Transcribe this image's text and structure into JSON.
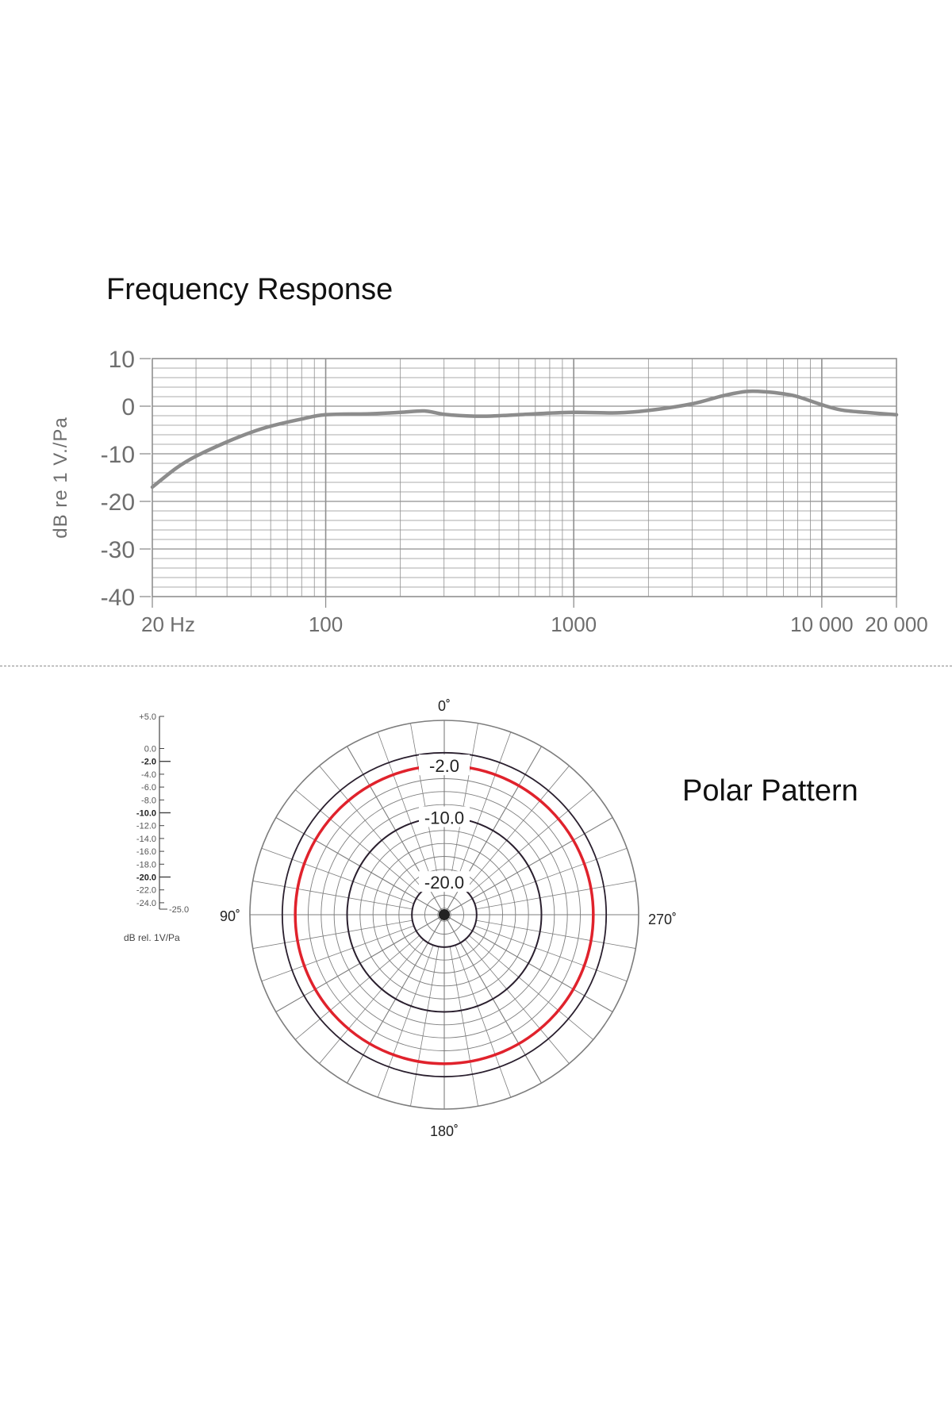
{
  "colors": {
    "grid": "#8f8f8f",
    "response_curve": "#8c8c8c",
    "polar_ring_dark": "#2a1f2e",
    "polar_highlight": "#e0222c",
    "axis_text": "#6e6e6e"
  },
  "chart_data": [
    {
      "type": "line",
      "title": "Frequency Response",
      "ylabel": "dB re 1 V./Pa",
      "xscale": "log",
      "xlim": [
        20,
        20000
      ],
      "ylim": [
        -40,
        10
      ],
      "grid": true,
      "yticks": [
        10,
        0,
        -10,
        -20,
        -30,
        -40
      ],
      "ytick_labels": [
        "10",
        "0",
        "-10",
        "-20",
        "-30",
        "-40"
      ],
      "xticks": [
        20,
        100,
        1000,
        10000,
        20000
      ],
      "xtick_labels": [
        "20 Hz",
        "100",
        "1000",
        "10 000",
        "20 000"
      ],
      "series": [
        {
          "x": [
            20,
            25,
            30,
            40,
            50,
            60,
            80,
            100,
            150,
            200,
            250,
            300,
            400,
            500,
            700,
            1000,
            1500,
            2000,
            3000,
            4000,
            5000,
            6000,
            7000,
            8000,
            10000,
            12000,
            15000,
            20000
          ],
          "values": [
            -17,
            -13,
            -10.5,
            -7.5,
            -5.5,
            -4.2,
            -2.7,
            -1.8,
            -1.6,
            -1.3,
            -1.0,
            -1.7,
            -2.1,
            -2.0,
            -1.6,
            -1.3,
            -1.4,
            -0.9,
            0.5,
            2.2,
            3.1,
            3.0,
            2.6,
            2.0,
            0.3,
            -0.8,
            -1.3,
            -1.8
          ]
        }
      ]
    },
    {
      "type": "polar",
      "title": "Polar Pattern",
      "angle_labels": [
        "0˚",
        "90˚",
        "180˚",
        "270˚"
      ],
      "ring_labels": [
        "-2.0",
        "-10.0",
        "-20.0"
      ],
      "scale_label": "dB rel. 1V/Pa",
      "scale_ticks": [
        "+5.0",
        "0.0",
        "-2.0",
        "-4.0",
        "-6.0",
        "-8.0",
        "-10.0",
        "-12.0",
        "-14.0",
        "-16.0",
        "-18.0",
        "-20.0",
        "-22.0",
        "-24.0",
        "-25.0"
      ],
      "scale_bold": [
        "-2.0",
        "-10.0",
        "-20.0"
      ],
      "rlim": [
        -25,
        5
      ],
      "series": [
        {
          "angles": [
            0,
            30,
            60,
            90,
            120,
            150,
            180,
            210,
            240,
            270,
            300,
            330
          ],
          "values": [
            -2,
            -2,
            -2,
            -2,
            -2,
            -2,
            -2,
            -2,
            -2,
            -2,
            -2,
            -2
          ]
        }
      ]
    }
  ]
}
